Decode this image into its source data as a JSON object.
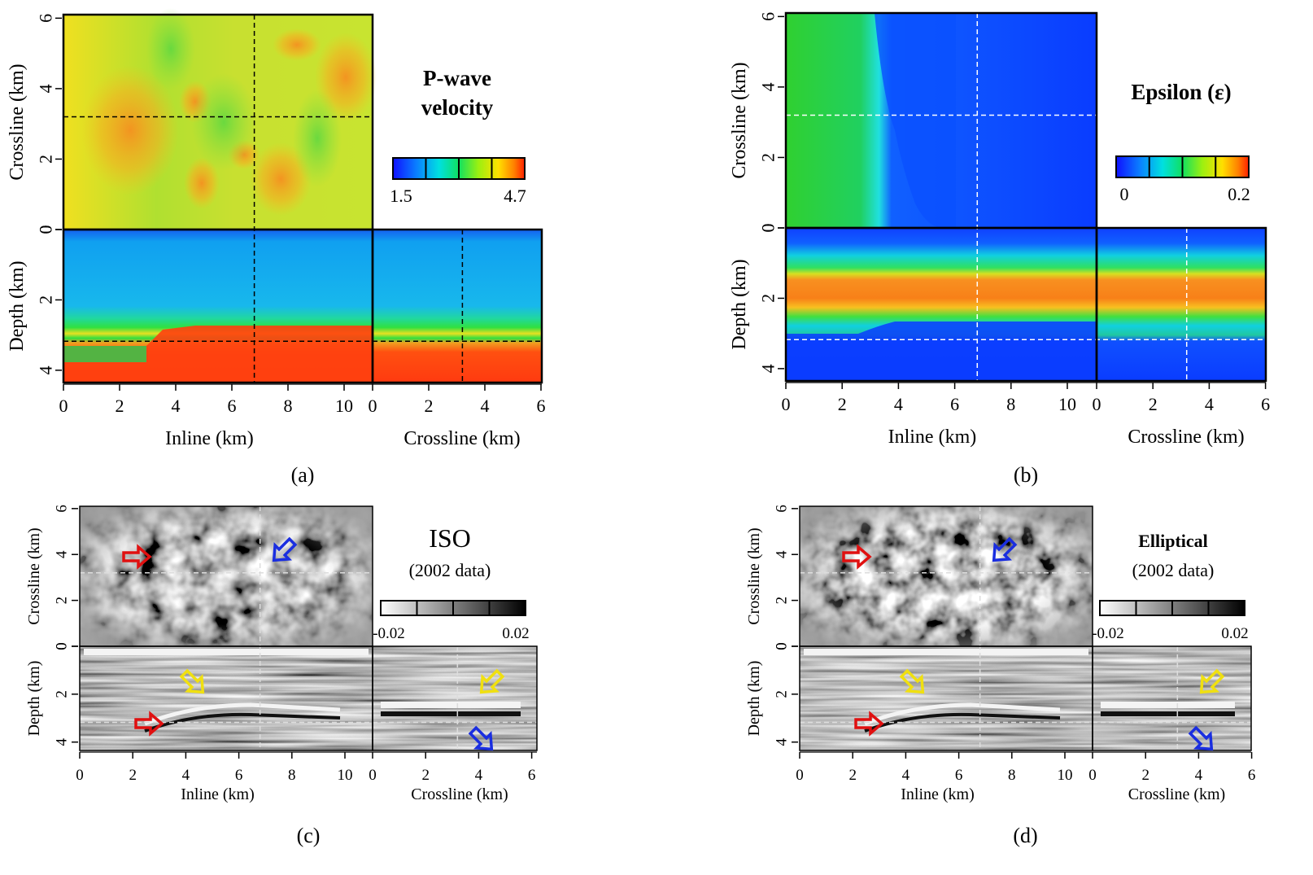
{
  "figure": {
    "panels": [
      {
        "id": "a",
        "caption": "(a)",
        "title_lines": [
          "P-wave",
          "velocity"
        ],
        "title_style": "bold",
        "colormap": "jet",
        "colorbar": {
          "min_label": "1.5",
          "max_label": "4.7"
        },
        "crossline_axis": {
          "label": "Crossline (km)",
          "ticks": [
            "0",
            "2",
            "4",
            "6"
          ]
        },
        "depth_axis": {
          "label": "Depth (km)",
          "ticks": [
            "0",
            "2",
            "4"
          ]
        },
        "inline_axis": {
          "label": "Inline (km)",
          "ticks": [
            "0",
            "2",
            "4",
            "6",
            "8",
            "10"
          ]
        },
        "crossline_h_axis": {
          "label": "Crossline (km)",
          "ticks": [
            "0",
            "2",
            "4",
            "6"
          ]
        },
        "guide_color": "#000000",
        "arrows": []
      },
      {
        "id": "b",
        "caption": "(b)",
        "title_lines": [
          "Epsilon (ε)"
        ],
        "title_style": "bold",
        "colormap": "jet",
        "colorbar": {
          "min_label": "0",
          "max_label": "0.2"
        },
        "crossline_axis": {
          "label": "Crossline (km)",
          "ticks": [
            "0",
            "2",
            "4",
            "6"
          ]
        },
        "depth_axis": {
          "label": "Depth (km)",
          "ticks": [
            "0",
            "2",
            "4"
          ]
        },
        "inline_axis": {
          "label": "Inline (km)",
          "ticks": [
            "0",
            "2",
            "4",
            "6",
            "8",
            "10"
          ]
        },
        "crossline_h_axis": {
          "label": "Crossline (km)",
          "ticks": [
            "0",
            "2",
            "4",
            "6"
          ]
        },
        "guide_color": "#ffffff",
        "arrows": []
      },
      {
        "id": "c",
        "caption": "(c)",
        "title_lines": [
          "ISO",
          "(2002 data)"
        ],
        "title_style": "plain",
        "colormap": "gray",
        "colorbar": {
          "min_label": "-0.02",
          "max_label": "0.02"
        },
        "crossline_axis": {
          "label": "Crossline (km)",
          "ticks": [
            "0",
            "2",
            "4",
            "6"
          ]
        },
        "depth_axis": {
          "label": "Depth (km)",
          "ticks": [
            "0",
            "2",
            "4"
          ]
        },
        "inline_axis": {
          "label": "Inline (km)",
          "ticks": [
            "0",
            "2",
            "4",
            "6",
            "8",
            "10"
          ]
        },
        "crossline_h_axis": {
          "label": "Crossline (km)",
          "ticks": [
            "0",
            "2",
            "4",
            "6"
          ]
        },
        "guide_color": "#dddddd",
        "arrows": [
          {
            "name": "red-arrow-map",
            "color": "#e01010",
            "direction": "right"
          },
          {
            "name": "blue-arrow-map",
            "color": "#1a2ee0",
            "direction": "down-left"
          },
          {
            "name": "yellow-arrow-inline",
            "color": "#f0e010",
            "direction": "down-right"
          },
          {
            "name": "red-arrow-inline",
            "color": "#e01010",
            "direction": "right"
          },
          {
            "name": "yellow-arrow-crossline",
            "color": "#f0e010",
            "direction": "down-left"
          },
          {
            "name": "blue-arrow-crossline",
            "color": "#1a2ee0",
            "direction": "down-right"
          }
        ]
      },
      {
        "id": "d",
        "caption": "(d)",
        "title_lines": [
          "Elliptical",
          "(2002 data)"
        ],
        "title_style": "bold-first",
        "colormap": "gray",
        "colorbar": {
          "min_label": "-0.02",
          "max_label": "0.02"
        },
        "crossline_axis": {
          "label": "Crossline (km)",
          "ticks": [
            "0",
            "2",
            "4",
            "6"
          ]
        },
        "depth_axis": {
          "label": "Depth (km)",
          "ticks": [
            "0",
            "2",
            "4"
          ]
        },
        "inline_axis": {
          "label": "Inline (km)",
          "ticks": [
            "0",
            "2",
            "4",
            "6",
            "8",
            "10"
          ]
        },
        "crossline_h_axis": {
          "label": "Crossline (km)",
          "ticks": [
            "0",
            "2",
            "4",
            "6"
          ]
        },
        "guide_color": "#dddddd",
        "arrows": [
          {
            "name": "red-arrow-map",
            "color": "#e01010",
            "direction": "right"
          },
          {
            "name": "blue-arrow-map",
            "color": "#1a2ee0",
            "direction": "down-left"
          },
          {
            "name": "yellow-arrow-inline",
            "color": "#f0e010",
            "direction": "down-right"
          },
          {
            "name": "red-arrow-inline",
            "color": "#e01010",
            "direction": "right"
          },
          {
            "name": "yellow-arrow-crossline",
            "color": "#f0e010",
            "direction": "down-left"
          },
          {
            "name": "blue-arrow-crossline",
            "color": "#1a2ee0",
            "direction": "down-right"
          }
        ]
      }
    ]
  }
}
